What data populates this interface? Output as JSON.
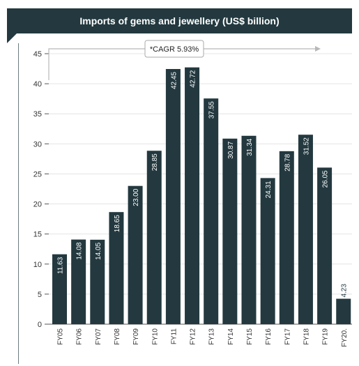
{
  "chart_data": {
    "type": "bar",
    "title": "Imports of gems and jewellery (US$ billion)",
    "annotation": "*CAGR 5.93%",
    "categories": [
      "FY05",
      "FY06",
      "FY07",
      "FY08",
      "FY09",
      "FY10",
      "FY11",
      "FY12",
      "FY13",
      "FY14",
      "FY15",
      "FY16",
      "FY17",
      "FY18",
      "FY19",
      "FY20"
    ],
    "values": [
      11.63,
      14.08,
      14.05,
      18.65,
      23.0,
      28.85,
      42.45,
      42.72,
      37.55,
      30.87,
      31.34,
      24.31,
      28.78,
      31.52,
      26.05,
      4.23
    ],
    "value_labels": [
      "11.63",
      "14.08",
      "14.05",
      "18.65",
      "23.00",
      "28.85",
      "42.45",
      "42.72",
      "37.55",
      "30.87",
      "31.34",
      "24.31",
      "28.78",
      "31.52",
      "26.05",
      "4.23"
    ],
    "tick_labels": [
      "FY05",
      "FY06",
      "FY07",
      "FY08",
      "FY09",
      "FY10",
      "FY11",
      "FY12",
      "FY13",
      "FY14",
      "FY15",
      "FY16",
      "FY17",
      "FY18",
      "FY19",
      "FY20."
    ],
    "ylim": [
      0,
      45
    ],
    "yticks": [
      0,
      5,
      10,
      15,
      20,
      25,
      30,
      35,
      40,
      45
    ],
    "grid": true,
    "bar_color": "#23393f",
    "xlabel": "",
    "ylabel": ""
  }
}
